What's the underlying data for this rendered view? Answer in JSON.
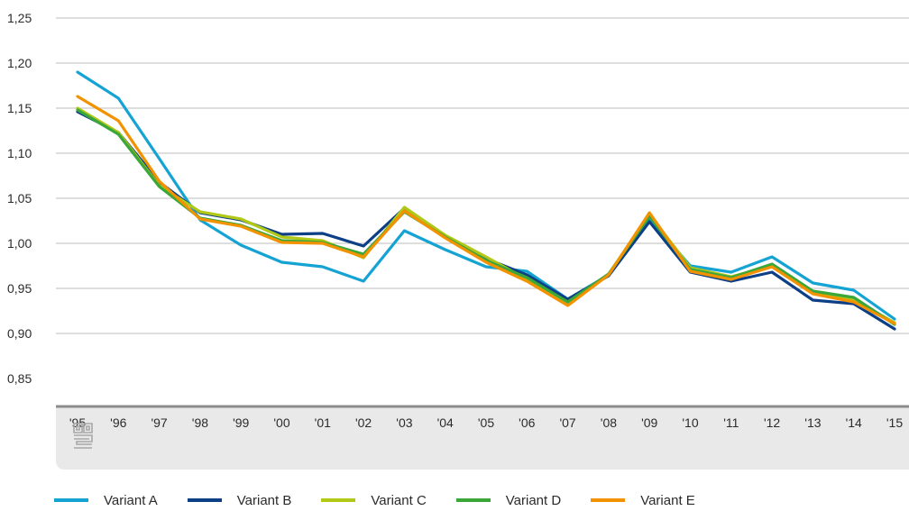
{
  "chart_data": {
    "type": "line",
    "title": "",
    "xlabel": "",
    "ylabel": "",
    "categories": [
      "'95",
      "'96",
      "'97",
      "'98",
      "'99",
      "'00",
      "'01",
      "'02",
      "'03",
      "'04",
      "'05",
      "'06",
      "'07",
      "'08",
      "'09",
      "'10",
      "'11",
      "'12",
      "'13",
      "'14",
      "'15"
    ],
    "y_ticks": [
      "0,85",
      "0,90",
      "0,95",
      "1,00",
      "1,05",
      "1,10",
      "1,15",
      "1,20",
      "1,25"
    ],
    "ylim": [
      0.85,
      1.25
    ],
    "grid": true,
    "legend_position": "bottom-left",
    "series": [
      {
        "name": "Variant A",
        "color": "#15a3d4",
        "values": [
          1.19,
          1.161,
          1.094,
          1.026,
          0.998,
          0.979,
          0.974,
          0.958,
          1.014,
          0.993,
          0.974,
          0.969,
          0.938,
          0.965,
          1.027,
          0.975,
          0.968,
          0.985,
          0.956,
          0.948,
          0.916
        ]
      },
      {
        "name": "Variant B",
        "color": "#0d3f86",
        "values": [
          1.146,
          1.123,
          1.068,
          1.034,
          1.026,
          1.01,
          1.011,
          0.997,
          1.039,
          1.008,
          0.983,
          0.965,
          0.938,
          0.964,
          1.024,
          0.968,
          0.958,
          0.968,
          0.937,
          0.933,
          0.905
        ]
      },
      {
        "name": "Variant C",
        "color": "#b1c817",
        "values": [
          1.15,
          1.123,
          1.064,
          1.035,
          1.027,
          1.007,
          1.003,
          0.984,
          1.04,
          1.009,
          0.985,
          0.96,
          0.932,
          0.966,
          1.032,
          0.973,
          0.963,
          0.975,
          0.946,
          0.937,
          0.912
        ]
      },
      {
        "name": "Variant D",
        "color": "#3ba738",
        "values": [
          1.148,
          1.121,
          1.063,
          1.028,
          1.02,
          1.003,
          1.001,
          0.988,
          1.035,
          1.007,
          0.981,
          0.962,
          0.935,
          0.966,
          1.03,
          0.971,
          0.962,
          0.977,
          0.947,
          0.94,
          0.91
        ]
      },
      {
        "name": "Variant E",
        "color": "#f39200",
        "values": [
          1.163,
          1.136,
          1.069,
          1.027,
          1.019,
          1.001,
          1.0,
          0.985,
          1.036,
          1.006,
          0.979,
          0.958,
          0.931,
          0.965,
          1.034,
          0.969,
          0.96,
          0.974,
          0.944,
          0.935,
          0.911
        ]
      }
    ]
  }
}
